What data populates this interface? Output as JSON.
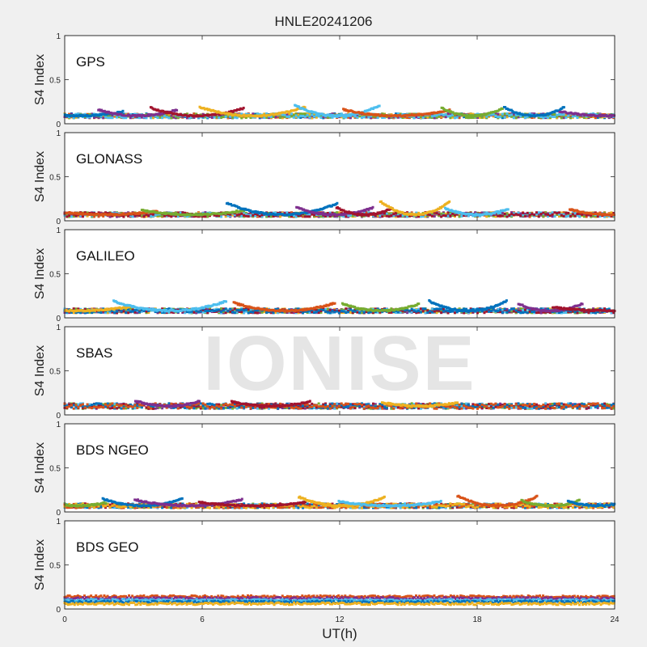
{
  "figure": {
    "title": "HNLE20241206",
    "xlabel": "UT(h)",
    "ylabel": "S4 Index",
    "watermark": "IONISE"
  },
  "chart_data": [
    {
      "type": "scatter",
      "name": "GPS",
      "xlim": [
        0,
        24
      ],
      "ylim": [
        0,
        1
      ],
      "xticks": [
        0,
        6,
        12,
        18,
        24
      ],
      "yticks": [
        0,
        0.5,
        1
      ],
      "baseline": 0.09,
      "bumps": [
        [
          0.6,
          0.14
        ],
        [
          3.2,
          0.16
        ],
        [
          5.8,
          0.18
        ],
        [
          8.2,
          0.19
        ],
        [
          11.9,
          0.21
        ],
        [
          14.5,
          0.16
        ],
        [
          17.8,
          0.18
        ],
        [
          20.5,
          0.19
        ],
        [
          23.7,
          0.14
        ]
      ]
    },
    {
      "type": "scatter",
      "name": "GLONASS",
      "xlim": [
        0,
        24
      ],
      "ylim": [
        0,
        1
      ],
      "xticks": [
        0,
        6,
        12,
        18,
        24
      ],
      "yticks": [
        0,
        0.5,
        1
      ],
      "baseline": 0.07,
      "bumps": [
        [
          1.8,
          0.11
        ],
        [
          5.6,
          0.12
        ],
        [
          9.5,
          0.2
        ],
        [
          11.8,
          0.15
        ],
        [
          13.1,
          0.15
        ],
        [
          15.3,
          0.22
        ],
        [
          18.0,
          0.14
        ],
        [
          23.8,
          0.13
        ]
      ]
    },
    {
      "type": "scatter",
      "name": "GALILEO",
      "xlim": [
        0,
        24
      ],
      "ylim": [
        0,
        1
      ],
      "xticks": [
        0,
        6,
        12,
        18,
        24
      ],
      "yticks": [
        0,
        0.5,
        1
      ],
      "baseline": 0.08,
      "bumps": [
        [
          0.5,
          0.13
        ],
        [
          4.6,
          0.19
        ],
        [
          9.6,
          0.17
        ],
        [
          13.8,
          0.16
        ],
        [
          17.6,
          0.19
        ],
        [
          21.2,
          0.16
        ],
        [
          23.8,
          0.12
        ]
      ]
    },
    {
      "type": "scatter",
      "name": "SBAS",
      "xlim": [
        0,
        24
      ],
      "ylim": [
        0,
        1
      ],
      "xticks": [
        0,
        6,
        12,
        18,
        24
      ],
      "yticks": [
        0,
        0.5,
        1
      ],
      "baseline": 0.1,
      "bumps": [
        [
          4.5,
          0.16
        ],
        [
          9.0,
          0.15
        ],
        [
          15.5,
          0.14
        ]
      ]
    },
    {
      "type": "scatter",
      "name": "BDS NGEO",
      "xlim": [
        0,
        24
      ],
      "ylim": [
        0,
        1
      ],
      "xticks": [
        0,
        6,
        12,
        18,
        24
      ],
      "yticks": [
        0,
        0.5,
        1
      ],
      "baseline": 0.07,
      "bumps": [
        [
          0.6,
          0.11
        ],
        [
          3.4,
          0.15
        ],
        [
          5.4,
          0.14
        ],
        [
          8.2,
          0.11
        ],
        [
          12.1,
          0.17
        ],
        [
          14.2,
          0.12
        ],
        [
          18.9,
          0.18
        ],
        [
          21.2,
          0.13
        ],
        [
          23.3,
          0.12
        ]
      ]
    },
    {
      "type": "scatter",
      "name": "BDS GEO",
      "xlim": [
        0,
        24
      ],
      "ylim": [
        0,
        1
      ],
      "xticks": [
        0,
        6,
        12,
        18,
        24
      ],
      "yticks": [
        0,
        0.5,
        1
      ],
      "levels": [
        0.14,
        0.12,
        0.1,
        0.08,
        0.06
      ]
    }
  ],
  "colors": [
    "#0072bd",
    "#d95319",
    "#edb120",
    "#7e2f8e",
    "#77ac30",
    "#4dbeee",
    "#a2142f"
  ]
}
